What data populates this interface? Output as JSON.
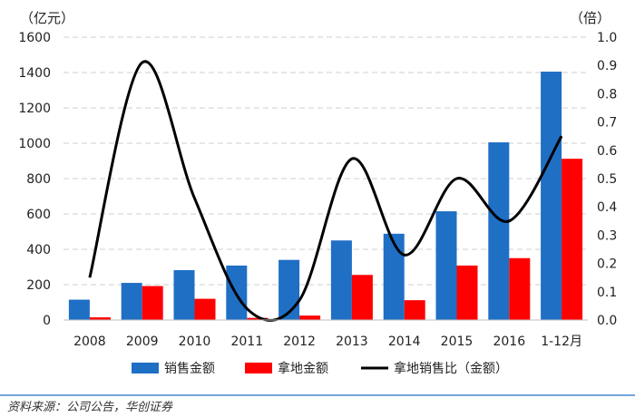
{
  "chart_data": {
    "type": "bar+line",
    "categories": [
      "2008",
      "2009",
      "2010",
      "2011",
      "2012",
      "2013",
      "2014",
      "2015",
      "2016",
      "1-12月"
    ],
    "series": [
      {
        "name": "销售金额",
        "type": "bar",
        "axis": "left",
        "color": "#1f6fc5",
        "values": [
          115,
          210,
          282,
          308,
          340,
          450,
          488,
          615,
          1005,
          1405
        ]
      },
      {
        "name": "拿地金额",
        "type": "bar",
        "axis": "left",
        "color": "#ff0000",
        "values": [
          15,
          192,
          120,
          12,
          25,
          255,
          112,
          308,
          350,
          912
        ]
      },
      {
        "name": "拿地销售比（金额）",
        "type": "line",
        "axis": "right",
        "color": "#000000",
        "values": [
          0.15,
          0.91,
          0.43,
          0.04,
          0.07,
          0.57,
          0.23,
          0.5,
          0.35,
          0.65
        ]
      }
    ],
    "left_axis": {
      "unit": "（亿元）",
      "min": 0,
      "max": 1600,
      "step": 200,
      "ticks": [
        "0",
        "200",
        "400",
        "600",
        "800",
        "1000",
        "1200",
        "1400",
        "1600"
      ]
    },
    "right_axis": {
      "unit": "（倍）",
      "min": 0,
      "max": 1.0,
      "step": 0.1,
      "ticks": [
        "0.0",
        "0.1",
        "0.2",
        "0.3",
        "0.4",
        "0.5",
        "0.6",
        "0.7",
        "0.8",
        "0.9",
        "1.0"
      ]
    },
    "grid": "horizontal-dashed",
    "legend_position": "bottom"
  },
  "source_note": "资料来源：公司公告，华创证券"
}
